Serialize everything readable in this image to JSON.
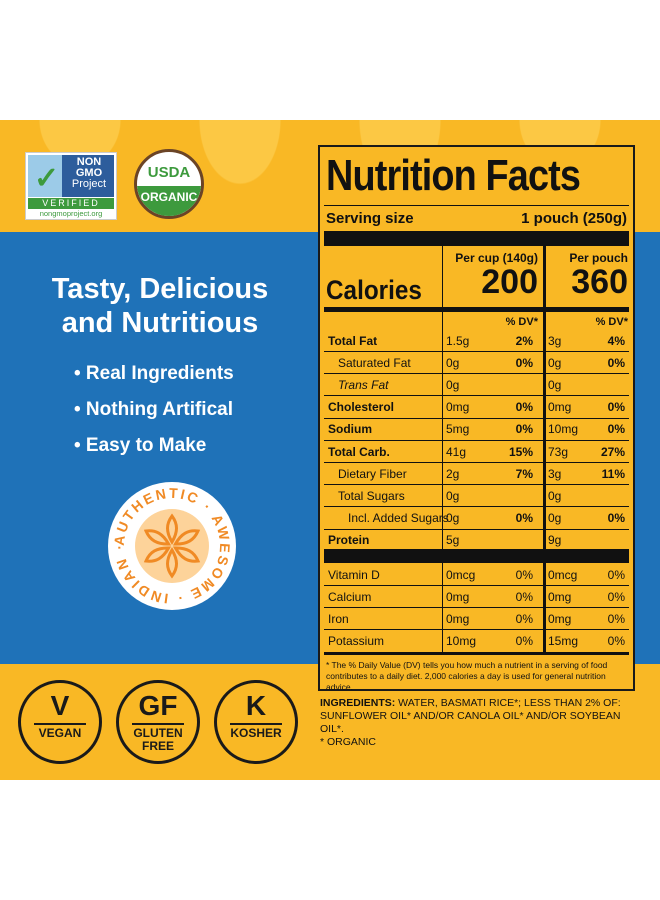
{
  "logos": {
    "nongmo": {
      "lines": [
        "NON",
        "GMO",
        "Project"
      ],
      "verified": "VERIFIED",
      "url": "nongmoproject.org"
    },
    "usda": {
      "top": "USDA",
      "bottom": "ORGANIC"
    }
  },
  "headline": [
    "Tasty, Delicious",
    "and Nutritious"
  ],
  "bullets": [
    "• Real Ingredients",
    "• Nothing Artifical",
    "• Easy to Make"
  ],
  "badge": {
    "text": "AUTHENTIC · AWESOME · INDIAN ·"
  },
  "diet": [
    {
      "big": "V",
      "small": "VEGAN"
    },
    {
      "big": "GF",
      "small": "GLUTEN FREE"
    },
    {
      "big": "K",
      "small": "KOSHER"
    }
  ],
  "nutrition": {
    "title": "Nutrition Facts",
    "serving_label": "Serving size",
    "serving_value": "1 pouch (250g)",
    "calories_label": "Calories",
    "col1_head": "Per cup (140g)",
    "col1_cal": "200",
    "col2_head": "Per pouch",
    "col2_cal": "360",
    "dv_label": "% DV*",
    "rows": [
      {
        "label": "Total Fat",
        "bold": true,
        "indent": 0,
        "a": "1.5g",
        "ap": "2%",
        "b": "3g",
        "bp": "4%"
      },
      {
        "label": "Saturated Fat",
        "indent": 1,
        "a": "0g",
        "ap": "0%",
        "b": "0g",
        "bp": "0%"
      },
      {
        "label": "Trans Fat",
        "indent": 1,
        "italic": true,
        "a": "0g",
        "ap": "",
        "b": "0g",
        "bp": ""
      },
      {
        "label": "Cholesterol",
        "bold": true,
        "a": "0mg",
        "ap": "0%",
        "b": "0mg",
        "bp": "0%"
      },
      {
        "label": "Sodium",
        "bold": true,
        "a": "5mg",
        "ap": "0%",
        "b": "10mg",
        "bp": "0%"
      },
      {
        "label": "Total Carb.",
        "bold": true,
        "a": "41g",
        "ap": "15%",
        "b": "73g",
        "bp": "27%"
      },
      {
        "label": "Dietary Fiber",
        "indent": 1,
        "a": "2g",
        "ap": "7%",
        "b": "3g",
        "bp": "11%"
      },
      {
        "label": "Total Sugars",
        "indent": 1,
        "a": "0g",
        "ap": "",
        "b": "0g",
        "bp": ""
      },
      {
        "label": "Incl. Added Sugars",
        "indent": 2,
        "a": "0g",
        "ap": "0%",
        "b": "0g",
        "bp": "0%"
      },
      {
        "label": "Protein",
        "bold": true,
        "a": "5g",
        "ap": "",
        "b": "9g",
        "bp": ""
      }
    ],
    "vitamins": [
      {
        "label": "Vitamin D",
        "a": "0mcg",
        "ap": "0%",
        "b": "0mcg",
        "bp": "0%"
      },
      {
        "label": "Calcium",
        "a": "0mg",
        "ap": "0%",
        "b": "0mg",
        "bp": "0%"
      },
      {
        "label": "Iron",
        "a": "0mg",
        "ap": "0%",
        "b": "0mg",
        "bp": "0%"
      },
      {
        "label": "Potassium",
        "a": "10mg",
        "ap": "0%",
        "b": "15mg",
        "bp": "0%"
      }
    ],
    "footnote": "* The % Daily Value (DV) tells you how much a nutrient in a serving of food contributes to a daily diet. 2,000 calories a day is used for general nutrition advice."
  },
  "ingredients": {
    "label": "INGREDIENTS:",
    "text": " WATER, BASMATI RICE*; LESS THAN 2% OF: SUNFLOWER OIL* AND/OR CANOLA OIL* AND/OR SOYBEAN OIL*.",
    "note": "* ORGANIC"
  },
  "colors": {
    "yellow": "#f9b825",
    "blue": "#1f72b8",
    "orange": "#f08a24",
    "green": "#3d9a3d"
  }
}
